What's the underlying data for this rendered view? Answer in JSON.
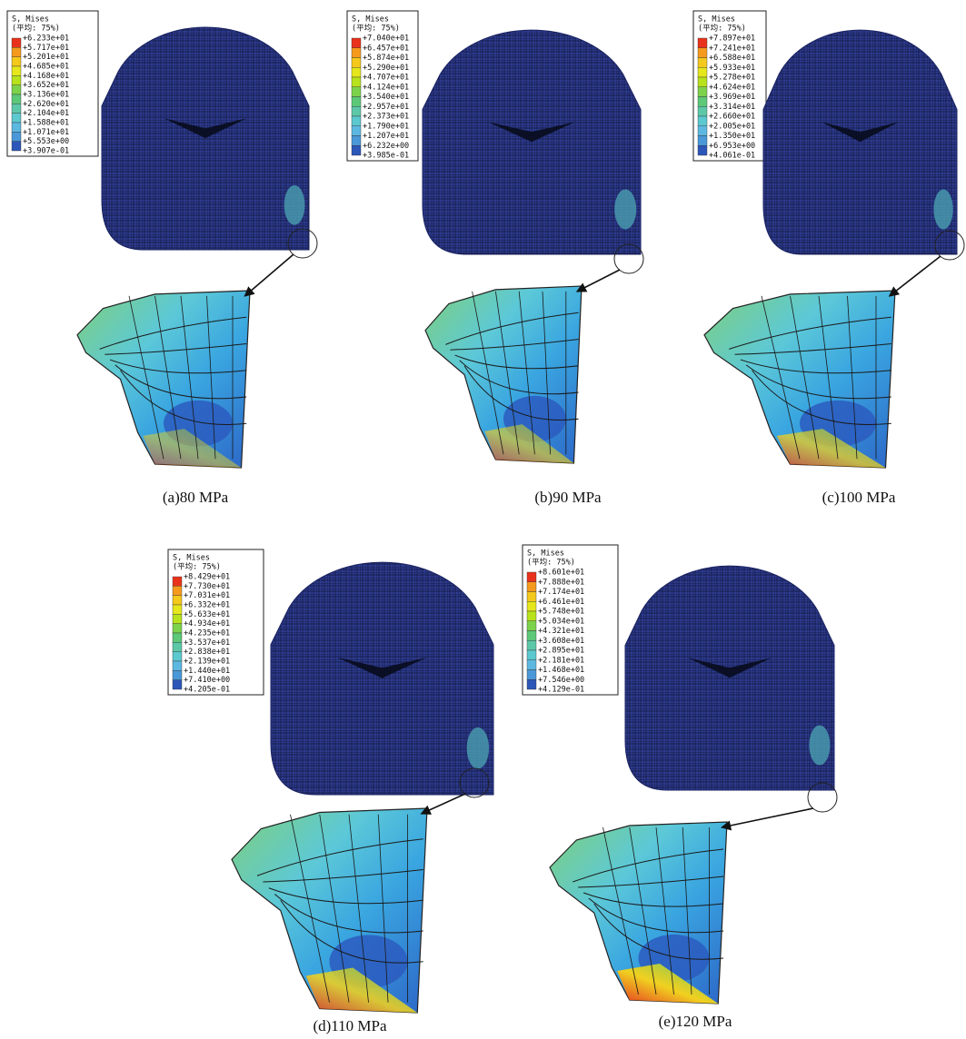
{
  "panels": [
    {
      "caption": "(a)80 MPa",
      "legend": {
        "title": "S, Mises",
        "subtitle": "(平均: 75%)",
        "values": [
          "+6.233e+01",
          "+5.717e+01",
          "+5.201e+01",
          "+4.685e+01",
          "+4.168e+01",
          "+3.652e+01",
          "+3.136e+01",
          "+2.620e+01",
          "+2.104e+01",
          "+1.588e+01",
          "+1.071e+01",
          "+5.553e+00",
          "+3.907e-01"
        ]
      }
    },
    {
      "caption": "(b)90 MPa",
      "legend": {
        "title": "S, Mises",
        "subtitle": "(平均: 75%)",
        "values": [
          "+7.040e+01",
          "+6.457e+01",
          "+5.874e+01",
          "+5.290e+01",
          "+4.707e+01",
          "+4.124e+01",
          "+3.540e+01",
          "+2.957e+01",
          "+2.373e+01",
          "+1.790e+01",
          "+1.207e+01",
          "+6.232e+00",
          "+3.985e-01"
        ]
      }
    },
    {
      "caption": "(c)100 MPa",
      "legend": {
        "title": "S, Mises",
        "subtitle": "(平均: 75%)",
        "values": [
          "+7.897e+01",
          "+7.241e+01",
          "+6.588e+01",
          "+5.933e+01",
          "+5.278e+01",
          "+4.624e+01",
          "+3.969e+01",
          "+3.314e+01",
          "+2.660e+01",
          "+2.005e+01",
          "+1.350e+01",
          "+6.953e+00",
          "+4.061e-01"
        ]
      }
    },
    {
      "caption": "(d)110 MPa",
      "legend": {
        "title": "S, Mises",
        "subtitle": "(平均: 75%)",
        "values": [
          "+8.429e+01",
          "+7.730e+01",
          "+7.031e+01",
          "+6.332e+01",
          "+5.633e+01",
          "+4.934e+01",
          "+4.235e+01",
          "+3.537e+01",
          "+2.838e+01",
          "+2.139e+01",
          "+1.440e+01",
          "+7.410e+00",
          "+4.205e-01"
        ]
      }
    },
    {
      "caption": "(e)120 MPa",
      "legend": {
        "title": "S, Mises",
        "subtitle": "(平均: 75%)",
        "values": [
          "+8.601e+01",
          "+7.888e+01",
          "+7.174e+01",
          "+6.461e+01",
          "+5.748e+01",
          "+5.034e+01",
          "+4.321e+01",
          "+3.608e+01",
          "+2.895e+01",
          "+2.181e+01",
          "+1.468e+01",
          "+7.546e+00",
          "+4.129e-01"
        ]
      }
    }
  ]
}
